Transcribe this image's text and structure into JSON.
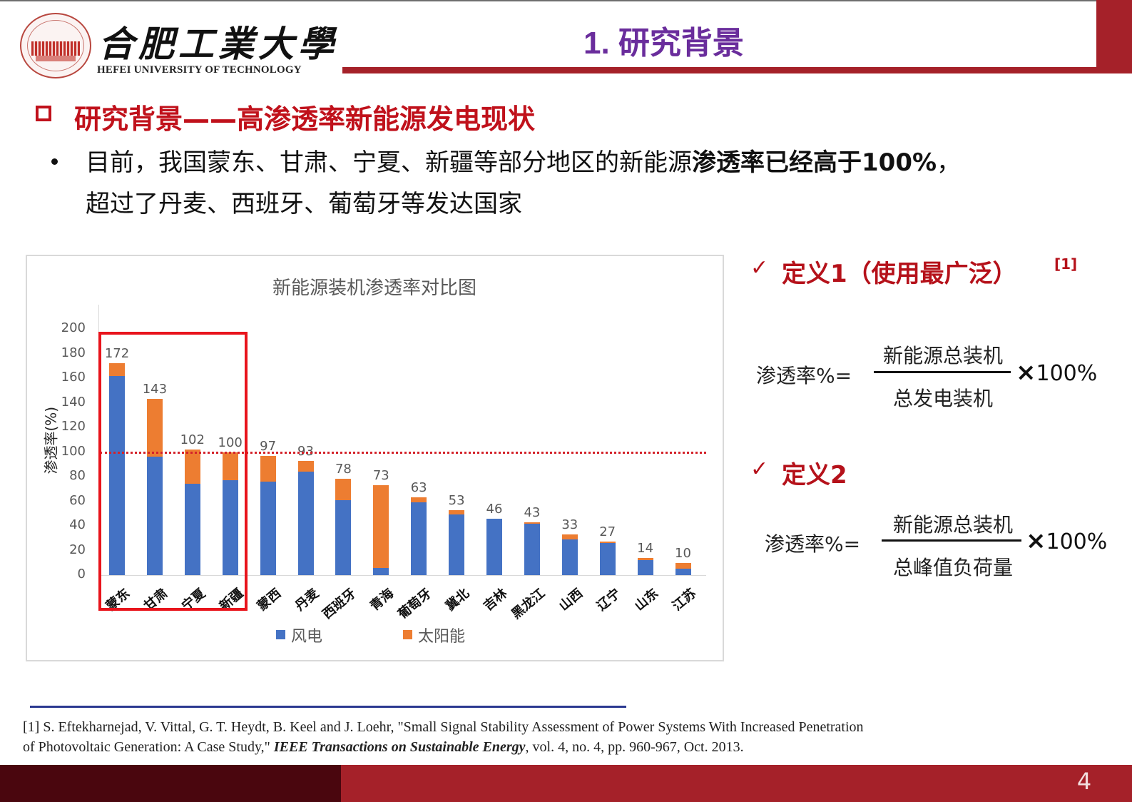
{
  "header": {
    "university_cn": "合肥工業大學",
    "university_en": "HEFEI UNIVERSITY OF TECHNOLOGY",
    "page_title": "1. 研究背景",
    "brand_color": "#a52129",
    "title_color": "#6a2d9c"
  },
  "section": {
    "heading": "研究背景——高渗透率新能源发电现状",
    "bullet": {
      "line1_normal": "目前，我国蒙东、甘肃、宁夏、新疆等部分地区的新能源",
      "line1_bold": "渗透率已经高于100%",
      "line1_end": "，",
      "line2": "超过了丹麦、西班牙、葡萄牙等发达国家"
    }
  },
  "chart_data": {
    "type": "bar",
    "stacked": true,
    "title": "新能源装机渗透率对比图",
    "xlabel": "",
    "ylabel": "渗透率(%)",
    "ylim": [
      0,
      200
    ],
    "yticks": [
      "200",
      "180",
      "160",
      "140",
      "120",
      "100",
      "80",
      "60",
      "40",
      "20",
      "0"
    ],
    "grid": false,
    "legend_position": "bottom",
    "categories": [
      "蒙东",
      "甘肃",
      "宁夏",
      "新疆",
      "蒙西",
      "丹麦",
      "西班牙",
      "青海",
      "葡萄牙",
      "冀北",
      "吉林",
      "黑龙江",
      "山西",
      "辽宁",
      "山东",
      "江苏"
    ],
    "totals": [
      172,
      143,
      102,
      100,
      97,
      93,
      78,
      73,
      63,
      53,
      46,
      43,
      33,
      27,
      14,
      10
    ],
    "total_labels": [
      "172",
      "143",
      "102",
      "100",
      "97",
      "93",
      "78",
      "73",
      "63",
      "53",
      "46",
      "43",
      "33",
      "27",
      "14",
      "10"
    ],
    "series": [
      {
        "name": "风电",
        "color": "#4472c4",
        "values": [
          162,
          96,
          74,
          77,
          76,
          84,
          61,
          6,
          59,
          49,
          46,
          42,
          29,
          26,
          12,
          5
        ]
      },
      {
        "name": "太阳能",
        "color": "#ed7d31",
        "values": [
          10,
          47,
          28,
          23,
          21,
          9,
          17,
          67,
          4,
          4,
          0,
          1,
          4,
          1,
          2,
          5
        ]
      }
    ],
    "reference_line": {
      "value": 100,
      "style": "dotted",
      "color": "#d4222a"
    },
    "highlight_box": {
      "categories": [
        "蒙东",
        "甘肃",
        "宁夏",
        "新疆"
      ],
      "color": "#e8141c"
    }
  },
  "definitions": [
    {
      "check": "✓",
      "title": "定义1（使用最广泛）",
      "cite": "[1]",
      "lhs": "渗透率%=",
      "numerator": "新能源总装机",
      "denominator": "总发电装机",
      "times": "×",
      "factor": "100%"
    },
    {
      "check": "✓",
      "title": "定义2",
      "cite": "",
      "lhs": "渗透率%=",
      "numerator": "新能源总装机",
      "denominator": "总峰值负荷量",
      "times": "×",
      "factor": "100%"
    }
  ],
  "footnote": {
    "line1": "[1] S. Eftekharnejad, V. Vittal, G. T. Heydt, B. Keel and J. Loehr, \"Small Signal Stability Assessment of Power Systems With Increased Penetration",
    "line2_pre": "of Photovoltaic Generation: A Case Study,\" ",
    "line2_journal": "IEEE Transactions on Sustainable Energy",
    "line2_post": ", vol. 4, no. 4, pp. 960-967, Oct. 2013."
  },
  "footer": {
    "page_number": "4"
  }
}
